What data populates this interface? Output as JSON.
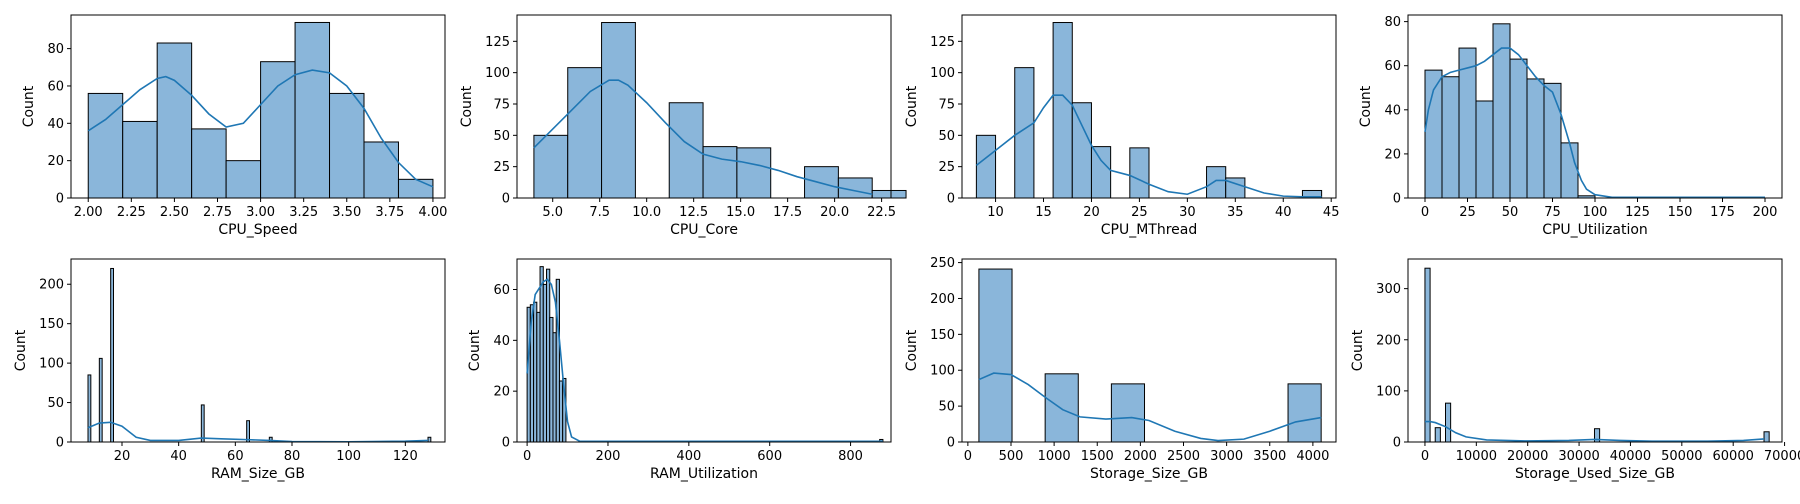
{
  "chart_data": [
    {
      "type": "bar",
      "xlabel": "CPU_Speed",
      "ylabel": "Count",
      "xlim": [
        1.9,
        4.07
      ],
      "ylim": [
        0,
        98
      ],
      "xticks": [
        2.0,
        2.25,
        2.5,
        2.75,
        3.0,
        3.25,
        3.5,
        3.75,
        4.0
      ],
      "xtick_labels": [
        "2.00",
        "2.25",
        "2.50",
        "2.75",
        "3.00",
        "3.25",
        "3.50",
        "3.75",
        "4.00"
      ],
      "yticks": [
        0,
        20,
        40,
        60,
        80
      ],
      "bins": [
        [
          2.0,
          2.2,
          56
        ],
        [
          2.2,
          2.4,
          41
        ],
        [
          2.4,
          2.6,
          83
        ],
        [
          2.6,
          2.8,
          37
        ],
        [
          2.8,
          3.0,
          20
        ],
        [
          3.0,
          3.2,
          73
        ],
        [
          3.2,
          3.4,
          94
        ],
        [
          3.4,
          3.6,
          56
        ],
        [
          3.6,
          3.8,
          30
        ],
        [
          3.8,
          4.0,
          10
        ]
      ],
      "kde": [
        [
          2.0,
          36
        ],
        [
          2.1,
          42
        ],
        [
          2.2,
          50
        ],
        [
          2.3,
          58
        ],
        [
          2.4,
          64
        ],
        [
          2.45,
          65
        ],
        [
          2.5,
          63
        ],
        [
          2.6,
          55
        ],
        [
          2.7,
          45
        ],
        [
          2.8,
          38
        ],
        [
          2.9,
          40
        ],
        [
          3.0,
          50
        ],
        [
          3.1,
          60
        ],
        [
          3.2,
          66
        ],
        [
          3.3,
          68.5
        ],
        [
          3.4,
          67
        ],
        [
          3.5,
          60
        ],
        [
          3.6,
          48
        ],
        [
          3.7,
          32
        ],
        [
          3.8,
          19
        ],
        [
          3.9,
          10
        ],
        [
          4.0,
          6
        ]
      ]
    },
    {
      "type": "bar",
      "xlabel": "CPU_Core",
      "ylabel": "Count",
      "xlim": [
        3.1,
        23.0
      ],
      "ylim": [
        0,
        146
      ],
      "xticks": [
        5.0,
        7.5,
        10.0,
        12.5,
        15.0,
        17.5,
        20.0,
        22.5
      ],
      "xtick_labels": [
        "5.0",
        "7.5",
        "10.0",
        "12.5",
        "15.0",
        "17.5",
        "20.0",
        "22.5"
      ],
      "yticks": [
        0,
        25,
        50,
        75,
        100,
        125
      ],
      "bins": [
        [
          4.0,
          5.8,
          50
        ],
        [
          5.8,
          7.6,
          104
        ],
        [
          7.6,
          9.4,
          140
        ],
        [
          11.2,
          13.0,
          76
        ],
        [
          13.0,
          14.8,
          41
        ],
        [
          14.8,
          16.6,
          40
        ],
        [
          18.4,
          20.2,
          25
        ],
        [
          20.2,
          22.0,
          16
        ],
        [
          22.0,
          23.8,
          6
        ]
      ],
      "kde": [
        [
          4.0,
          40
        ],
        [
          5.0,
          55
        ],
        [
          6.0,
          70
        ],
        [
          7.0,
          85
        ],
        [
          8.0,
          94
        ],
        [
          8.5,
          94
        ],
        [
          9.0,
          90
        ],
        [
          10.0,
          76
        ],
        [
          11.0,
          60
        ],
        [
          12.0,
          45
        ],
        [
          13.0,
          35
        ],
        [
          14.0,
          31
        ],
        [
          15.0,
          29
        ],
        [
          16.0,
          26
        ],
        [
          17.0,
          22
        ],
        [
          18.0,
          17
        ],
        [
          19.0,
          13
        ],
        [
          20.0,
          9
        ],
        [
          21.0,
          6
        ],
        [
          22.0,
          3
        ]
      ]
    },
    {
      "type": "bar",
      "xlabel": "CPU_MThread",
      "ylabel": "Count",
      "xlim": [
        6.5,
        45.5
      ],
      "ylim": [
        0,
        146
      ],
      "xticks": [
        10,
        15,
        20,
        25,
        30,
        35,
        40,
        45
      ],
      "xtick_labels": [
        "10",
        "15",
        "20",
        "25",
        "30",
        "35",
        "40",
        "45"
      ],
      "yticks": [
        0,
        25,
        50,
        75,
        100,
        125
      ],
      "bins": [
        [
          8.0,
          10.0,
          50
        ],
        [
          12.0,
          14.0,
          104
        ],
        [
          16.0,
          18.0,
          140
        ],
        [
          18.0,
          20.0,
          76
        ],
        [
          20.0,
          22.0,
          41
        ],
        [
          24.0,
          26.0,
          40
        ],
        [
          32.0,
          34.0,
          25
        ],
        [
          34.0,
          36.0,
          16
        ],
        [
          42.0,
          44.0,
          6
        ]
      ],
      "kde": [
        [
          8,
          26
        ],
        [
          10,
          38
        ],
        [
          12,
          50
        ],
        [
          14,
          60
        ],
        [
          15,
          72
        ],
        [
          16,
          82
        ],
        [
          17,
          82
        ],
        [
          18,
          74
        ],
        [
          19,
          58
        ],
        [
          20,
          42
        ],
        [
          21,
          30
        ],
        [
          22,
          22
        ],
        [
          24,
          18
        ],
        [
          26,
          11
        ],
        [
          28,
          5
        ],
        [
          30,
          3
        ],
        [
          32,
          9
        ],
        [
          33,
          14
        ],
        [
          34,
          14
        ],
        [
          36,
          9
        ],
        [
          38,
          4
        ],
        [
          40,
          1.5
        ],
        [
          42,
          1
        ],
        [
          44,
          1
        ]
      ]
    },
    {
      "type": "bar",
      "xlabel": "CPU_Utilization",
      "ylabel": "Count",
      "xlim": [
        -10,
        210
      ],
      "ylim": [
        0,
        83
      ],
      "xticks": [
        0,
        25,
        50,
        75,
        100,
        125,
        150,
        175,
        200
      ],
      "xtick_labels": [
        "0",
        "25",
        "50",
        "75",
        "100",
        "125",
        "150",
        "175",
        "200"
      ],
      "yticks": [
        0,
        20,
        40,
        60,
        80
      ],
      "bins": [
        [
          0,
          10,
          58
        ],
        [
          10,
          20,
          55
        ],
        [
          20,
          30,
          68
        ],
        [
          30,
          40,
          44
        ],
        [
          40,
          50,
          79
        ],
        [
          50,
          60,
          63
        ],
        [
          60,
          70,
          54
        ],
        [
          70,
          80,
          52
        ],
        [
          80,
          90,
          25
        ],
        [
          90,
          100,
          1
        ]
      ],
      "kde": [
        [
          0,
          30
        ],
        [
          2,
          40
        ],
        [
          5,
          49
        ],
        [
          10,
          55
        ],
        [
          15,
          57
        ],
        [
          20,
          58
        ],
        [
          25,
          59
        ],
        [
          30,
          60
        ],
        [
          35,
          62
        ],
        [
          40,
          65
        ],
        [
          45,
          68
        ],
        [
          50,
          68
        ],
        [
          55,
          65
        ],
        [
          60,
          60
        ],
        [
          65,
          55
        ],
        [
          70,
          51
        ],
        [
          75,
          48
        ],
        [
          80,
          38
        ],
        [
          85,
          25
        ],
        [
          88,
          16
        ],
        [
          92,
          8
        ],
        [
          95,
          4
        ],
        [
          100,
          1.5
        ],
        [
          110,
          0.3
        ],
        [
          200,
          0.3
        ]
      ],
      "note": "x axis extends to 200; bins cover 0–100"
    },
    {
      "type": "bar",
      "xlabel": "RAM_Size_GB",
      "ylabel": "Count",
      "xlim": [
        2,
        134
      ],
      "ylim": [
        0,
        232
      ],
      "xticks": [
        20,
        40,
        60,
        80,
        100,
        120
      ],
      "xtick_labels": [
        "20",
        "40",
        "60",
        "80",
        "100",
        "120"
      ],
      "yticks": [
        0,
        50,
        100,
        150,
        200
      ],
      "bins": [
        [
          8.0,
          9.0,
          85
        ],
        [
          12.0,
          13.0,
          106
        ],
        [
          16.0,
          17.0,
          220
        ],
        [
          48.0,
          49.0,
          47
        ],
        [
          64.0,
          65.0,
          27
        ],
        [
          72.0,
          73.0,
          6
        ],
        [
          128.0,
          129.0,
          6
        ]
      ],
      "kde": [
        [
          8,
          18
        ],
        [
          12,
          24
        ],
        [
          16,
          25
        ],
        [
          20,
          20
        ],
        [
          25,
          6
        ],
        [
          30,
          2
        ],
        [
          40,
          2
        ],
        [
          48,
          5
        ],
        [
          55,
          4
        ],
        [
          64,
          3
        ],
        [
          72,
          2
        ],
        [
          80,
          0.5
        ],
        [
          100,
          0.3
        ],
        [
          120,
          1
        ],
        [
          128,
          2
        ]
      ]
    },
    {
      "type": "bar",
      "xlabel": "RAM_Utilization",
      "ylabel": "Count",
      "xlim": [
        -25,
        900
      ],
      "ylim": [
        0,
        72
      ],
      "xticks": [
        0,
        200,
        400,
        600,
        800
      ],
      "xtick_labels": [
        "0",
        "200",
        "400",
        "600",
        "800"
      ],
      "yticks": [
        0,
        20,
        40,
        60
      ],
      "bins": [
        [
          0,
          8,
          53
        ],
        [
          8,
          16,
          54
        ],
        [
          16,
          24,
          55
        ],
        [
          24,
          32,
          51
        ],
        [
          32,
          40,
          69
        ],
        [
          40,
          48,
          62
        ],
        [
          48,
          56,
          68
        ],
        [
          56,
          64,
          49
        ],
        [
          64,
          72,
          43
        ],
        [
          72,
          80,
          64
        ],
        [
          80,
          88,
          24
        ],
        [
          88,
          96,
          25
        ],
        [
          872,
          880,
          1
        ]
      ],
      "kde": [
        [
          0,
          27
        ],
        [
          10,
          47
        ],
        [
          20,
          58
        ],
        [
          40,
          63
        ],
        [
          50,
          64
        ],
        [
          60,
          62
        ],
        [
          70,
          55
        ],
        [
          80,
          40
        ],
        [
          90,
          23
        ],
        [
          100,
          8
        ],
        [
          110,
          2
        ],
        [
          130,
          0.3
        ],
        [
          880,
          0.3
        ]
      ]
    },
    {
      "type": "bar",
      "xlabel": "Storage_Size_GB",
      "ylabel": "Count",
      "xlim": [
        -68,
        4268
      ],
      "ylim": [
        0,
        255
      ],
      "xticks": [
        0,
        500,
        1000,
        1500,
        2000,
        2500,
        3000,
        3500,
        4000
      ],
      "xtick_labels": [
        "0",
        "500",
        "1000",
        "1500",
        "2000",
        "2500",
        "3000",
        "3500",
        "4000"
      ],
      "yticks": [
        0,
        50,
        100,
        150,
        200,
        250
      ],
      "bins": [
        [
          128,
          512,
          241
        ],
        [
          896,
          1280,
          95
        ],
        [
          1664,
          2048,
          81
        ],
        [
          3712,
          4096,
          81
        ]
      ],
      "kde": [
        [
          128,
          87
        ],
        [
          300,
          96
        ],
        [
          500,
          94
        ],
        [
          700,
          80
        ],
        [
          900,
          62
        ],
        [
          1100,
          45
        ],
        [
          1300,
          35
        ],
        [
          1600,
          32
        ],
        [
          1900,
          34
        ],
        [
          2100,
          30
        ],
        [
          2400,
          15
        ],
        [
          2700,
          5
        ],
        [
          2900,
          2
        ],
        [
          3200,
          4
        ],
        [
          3500,
          15
        ],
        [
          3800,
          28
        ],
        [
          4096,
          34
        ]
      ]
    },
    {
      "type": "bar",
      "xlabel": "Storage_Used_Size_GB",
      "ylabel": "Count",
      "xlim": [
        -3300,
        69500
      ],
      "ylim": [
        0,
        358
      ],
      "xticks": [
        0,
        10000,
        20000,
        30000,
        40000,
        50000,
        60000,
        70000
      ],
      "xtick_labels": [
        "0",
        "10000",
        "20000",
        "30000",
        "40000",
        "50000",
        "60000",
        "70000"
      ],
      "yticks": [
        0,
        100,
        200,
        300
      ],
      "bins": [
        [
          0,
          1000,
          340
        ],
        [
          2000,
          3000,
          28
        ],
        [
          4000,
          5000,
          76
        ],
        [
          33000,
          34000,
          26
        ],
        [
          66000,
          67000,
          20
        ]
      ],
      "kde": [
        [
          0,
          40
        ],
        [
          1000,
          40
        ],
        [
          2000,
          38
        ],
        [
          4000,
          30
        ],
        [
          6000,
          18
        ],
        [
          8000,
          10
        ],
        [
          12000,
          4
        ],
        [
          20000,
          2
        ],
        [
          28000,
          3
        ],
        [
          33000,
          5
        ],
        [
          38000,
          3
        ],
        [
          45000,
          1.5
        ],
        [
          55000,
          1.5
        ],
        [
          62000,
          3
        ],
        [
          66000,
          6
        ]
      ]
    }
  ]
}
